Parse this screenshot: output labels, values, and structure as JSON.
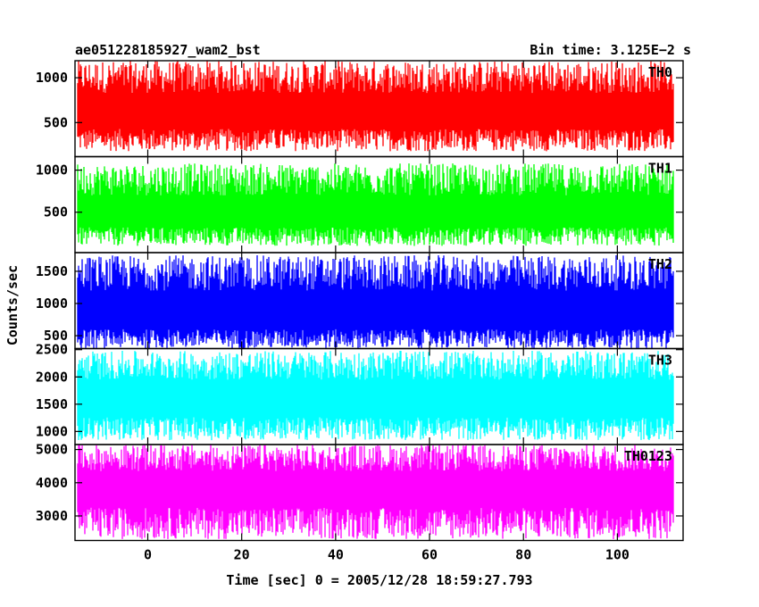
{
  "header": {
    "left": "ae051228185927_wam2_bst",
    "right": "Bin time: 3.125E−2 s"
  },
  "chart_data": {
    "type": "line",
    "title": "ae051228185927_wam2_bst",
    "subtitle": "Bin time: 3.125E−2 s",
    "xlabel": "Time [sec] 0 = 2005/12/28 18:59:27.793",
    "ylabel": "Counts/sec",
    "xlim": [
      -15.5,
      114
    ],
    "x_ticks": [
      0,
      20,
      40,
      60,
      80,
      100
    ],
    "x_tick_labels": [
      "0",
      "20",
      "40",
      "60",
      "80",
      "100"
    ],
    "data_x_range": [
      -15,
      112
    ],
    "grid": false,
    "panels": [
      {
        "name": "TH0",
        "color": "#ff0000",
        "ylim": [
          120,
          1190
        ],
        "y_ticks": [
          500,
          1000
        ],
        "y_tick_labels": [
          "500",
          "1000"
        ],
        "envelope": {
          "low": [
            180,
            430
          ],
          "high": [
            830,
            1190
          ]
        }
      },
      {
        "name": "TH1",
        "color": "#00ff00",
        "ylim": [
          20,
          1160
        ],
        "y_ticks": [
          500,
          1000
        ],
        "y_tick_labels": [
          "500",
          "1000"
        ],
        "envelope": {
          "low": [
            100,
            320
          ],
          "high": [
            700,
            1080
          ]
        }
      },
      {
        "name": "TH2",
        "color": "#0000ff",
        "ylim": [
          300,
          1790
        ],
        "y_ticks": [
          500,
          1000,
          1500
        ],
        "y_tick_labels": [
          "500",
          "1000",
          "1500"
        ],
        "envelope": {
          "low": [
            300,
            600
          ],
          "high": [
            1200,
            1750
          ]
        }
      },
      {
        "name": "TH3",
        "color": "#00ffff",
        "ylim": [
          760,
          2520
        ],
        "y_ticks": [
          1000,
          1500,
          2000,
          2500
        ],
        "y_tick_labels": [
          "1000",
          "1500",
          "2000",
          "2500"
        ],
        "envelope": {
          "low": [
            840,
            1260
          ],
          "high": [
            1950,
            2480
          ]
        }
      },
      {
        "name": "TH0123",
        "color": "#ff00ff",
        "ylim": [
          2260,
          5150
        ],
        "y_ticks": [
          3000,
          4000,
          5000
        ],
        "y_tick_labels": [
          "3000",
          "4000",
          "5000"
        ],
        "envelope": {
          "low": [
            2300,
            3250
          ],
          "high": [
            4350,
            5150
          ]
        }
      }
    ]
  }
}
